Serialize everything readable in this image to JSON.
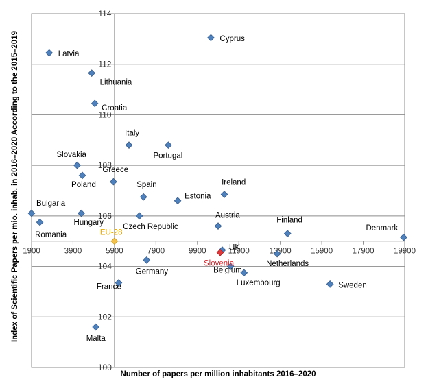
{
  "chart_data": {
    "type": "scatter",
    "xlabel": "Number of papers per million inhabitants 2016–2020",
    "ylabel": "Index of Scientific Papers per mio. inhab. in 2016–2020 According to the 2015–2019",
    "xlim": [
      1900,
      19900
    ],
    "ylim": [
      100,
      114
    ],
    "x_ticks": [
      "1900",
      "3900",
      "5900",
      "7900",
      "9900",
      "11900",
      "13900",
      "15900",
      "17900",
      "19900"
    ],
    "y_ticks": [
      "100",
      "102",
      "104",
      "106",
      "108",
      "110",
      "112",
      "114"
    ],
    "crosshair": {
      "x": 5900,
      "y": 105
    },
    "grid": true,
    "colors": {
      "point": "#4f81bd",
      "point_edge": "#385d8a",
      "highlight": "#e0383b",
      "eu": "#f2c14e",
      "eu_label": "#e6a800",
      "slovenia_label": "#e0232a"
    },
    "points": [
      {
        "name": "Latvia",
        "x": 2750,
        "y": 112.45
      },
      {
        "name": "Cyprus",
        "x": 10550,
        "y": 113.05
      },
      {
        "name": "Lithuania",
        "x": 4800,
        "y": 111.65
      },
      {
        "name": "Croatia",
        "x": 4950,
        "y": 110.45
      },
      {
        "name": "Italy",
        "x": 6600,
        "y": 108.8
      },
      {
        "name": "Portugal",
        "x": 8500,
        "y": 108.8
      },
      {
        "name": "Slovakia",
        "x": 4100,
        "y": 108.0
      },
      {
        "name": "Greece",
        "x": 5850,
        "y": 107.35
      },
      {
        "name": "Poland",
        "x": 4350,
        "y": 107.6
      },
      {
        "name": "Spain",
        "x": 7300,
        "y": 106.75
      },
      {
        "name": "Estonia",
        "x": 8950,
        "y": 106.6
      },
      {
        "name": "Ireland",
        "x": 11200,
        "y": 106.85
      },
      {
        "name": "Bulgaria",
        "x": 1900,
        "y": 106.1
      },
      {
        "name": "Hungary",
        "x": 4300,
        "y": 106.1
      },
      {
        "name": "Czech Republic",
        "x": 7100,
        "y": 106.0
      },
      {
        "name": "Romania",
        "x": 2300,
        "y": 105.75
      },
      {
        "name": "Austria",
        "x": 10900,
        "y": 105.6
      },
      {
        "name": "Finland",
        "x": 14250,
        "y": 105.3
      },
      {
        "name": "Denmark",
        "x": 19850,
        "y": 105.15
      },
      {
        "name": "EU-28",
        "x": 5900,
        "y": 105.0
      },
      {
        "name": "UK",
        "x": 11100,
        "y": 104.65
      },
      {
        "name": "Slovenia",
        "x": 11000,
        "y": 104.55
      },
      {
        "name": "Germany",
        "x": 7450,
        "y": 104.25
      },
      {
        "name": "Netherlands",
        "x": 13750,
        "y": 104.5
      },
      {
        "name": "Belgium",
        "x": 11500,
        "y": 104.0
      },
      {
        "name": "Luxembourg",
        "x": 12150,
        "y": 103.75
      },
      {
        "name": "France",
        "x": 6100,
        "y": 103.35
      },
      {
        "name": "Sweden",
        "x": 16300,
        "y": 103.3
      },
      {
        "name": "Malta",
        "x": 5000,
        "y": 101.6
      }
    ]
  }
}
